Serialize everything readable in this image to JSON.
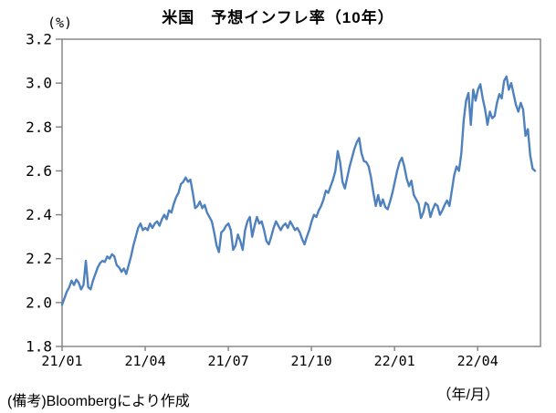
{
  "chart": {
    "title": "米国　予想インフレ率（10年）",
    "y_unit": "(%)",
    "x_unit": "（年/月）",
    "source_note": "(備考)Bloombergにより作成"
  },
  "chart_data": {
    "type": "line",
    "title": "米国　予想インフレ率（10年）",
    "ylabel": "(%)",
    "xlabel": "（年/月）",
    "ylim": [
      1.8,
      3.2
    ],
    "y_ticks": [
      "1.8",
      "2.0",
      "2.2",
      "2.4",
      "2.6",
      "2.8",
      "3.0",
      "3.2"
    ],
    "x_ticks": [
      {
        "label": "21/01",
        "month": 0
      },
      {
        "label": "21/04",
        "month": 3
      },
      {
        "label": "21/07",
        "month": 6
      },
      {
        "label": "21/10",
        "month": 9
      },
      {
        "label": "22/01",
        "month": 12
      },
      {
        "label": "22/04",
        "month": 15
      }
    ],
    "x_span_months": 17.07,
    "grid": false,
    "legend_position": "none",
    "line_color": "#4F81BD",
    "frame_color": "#808080",
    "series": [
      {
        "color": "#4F81BD",
        "values": [
          1.99,
          2.02,
          2.05,
          2.07,
          2.1,
          2.08,
          2.105,
          2.09,
          2.06,
          2.08,
          2.19,
          2.07,
          2.06,
          2.1,
          2.13,
          2.16,
          2.18,
          2.19,
          2.185,
          2.21,
          2.2,
          2.22,
          2.21,
          2.17,
          2.16,
          2.14,
          2.155,
          2.13,
          2.17,
          2.21,
          2.26,
          2.3,
          2.34,
          2.36,
          2.33,
          2.34,
          2.33,
          2.36,
          2.34,
          2.36,
          2.37,
          2.35,
          2.38,
          2.4,
          2.38,
          2.42,
          2.41,
          2.45,
          2.48,
          2.5,
          2.54,
          2.55,
          2.57,
          2.55,
          2.56,
          2.5,
          2.43,
          2.44,
          2.46,
          2.43,
          2.445,
          2.41,
          2.39,
          2.37,
          2.32,
          2.26,
          2.23,
          2.32,
          2.33,
          2.35,
          2.36,
          2.33,
          2.24,
          2.26,
          2.31,
          2.28,
          2.24,
          2.33,
          2.37,
          2.39,
          2.3,
          2.35,
          2.39,
          2.36,
          2.37,
          2.33,
          2.28,
          2.265,
          2.3,
          2.34,
          2.37,
          2.35,
          2.33,
          2.35,
          2.36,
          2.34,
          2.37,
          2.35,
          2.33,
          2.34,
          2.32,
          2.29,
          2.265,
          2.3,
          2.33,
          2.37,
          2.4,
          2.39,
          2.42,
          2.44,
          2.47,
          2.51,
          2.5,
          2.53,
          2.56,
          2.6,
          2.69,
          2.64,
          2.55,
          2.52,
          2.57,
          2.62,
          2.66,
          2.7,
          2.73,
          2.75,
          2.68,
          2.645,
          2.64,
          2.62,
          2.57,
          2.5,
          2.44,
          2.49,
          2.44,
          2.47,
          2.435,
          2.425,
          2.46,
          2.5,
          2.55,
          2.6,
          2.64,
          2.66,
          2.62,
          2.565,
          2.53,
          2.555,
          2.49,
          2.47,
          2.45,
          2.385,
          2.41,
          2.455,
          2.445,
          2.39,
          2.425,
          2.45,
          2.44,
          2.4,
          2.42,
          2.445,
          2.465,
          2.44,
          2.51,
          2.58,
          2.62,
          2.6,
          2.68,
          2.83,
          2.92,
          2.955,
          2.81,
          2.97,
          2.92,
          2.97,
          2.995,
          2.93,
          2.88,
          2.81,
          2.87,
          2.84,
          2.85,
          2.91,
          2.95,
          2.93,
          3.01,
          3.03,
          2.97,
          3.0,
          2.95,
          2.9,
          2.87,
          2.91,
          2.88,
          2.76,
          2.79,
          2.67,
          2.61,
          2.6
        ]
      }
    ]
  }
}
